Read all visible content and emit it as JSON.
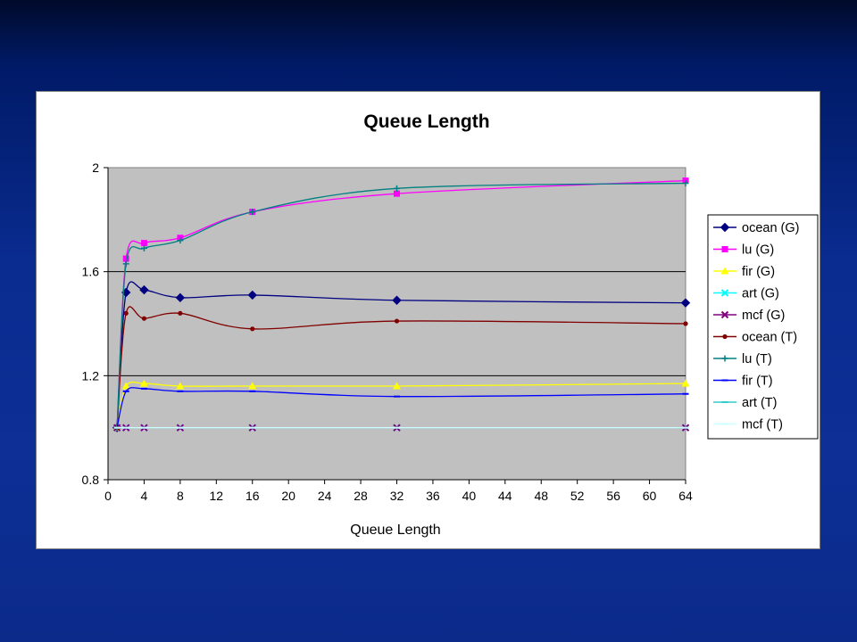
{
  "slide": {
    "background": "#0d2f96"
  },
  "chart_data": {
    "type": "line",
    "title": "Queue Length",
    "xlabel": "Queue Length",
    "ylabel": "",
    "xlim": [
      0,
      64
    ],
    "ylim": [
      0.8,
      2.0
    ],
    "xticks": [
      0,
      4,
      8,
      12,
      16,
      20,
      24,
      28,
      32,
      36,
      40,
      44,
      48,
      52,
      56,
      60,
      64
    ],
    "yticks": [
      0.8,
      1.2,
      1.6,
      2.0
    ],
    "ytick_labels": [
      "0.8",
      "1.2",
      "1.6",
      "2"
    ],
    "plot_background": "#c0c0c0",
    "grid": "horizontal",
    "legend_position": "right",
    "x": [
      1,
      2,
      4,
      8,
      16,
      32,
      64
    ],
    "series": [
      {
        "name": "ocean (G)",
        "color": "#000080",
        "marker": "diamond",
        "values": [
          1.0,
          1.52,
          1.53,
          1.5,
          1.51,
          1.49,
          1.48
        ]
      },
      {
        "name": "lu (G)",
        "color": "#ff00ff",
        "marker": "square",
        "values": [
          1.0,
          1.65,
          1.71,
          1.73,
          1.83,
          1.9,
          1.95
        ]
      },
      {
        "name": "fir (G)",
        "color": "#ffff00",
        "marker": "triangle",
        "values": [
          1.0,
          1.16,
          1.17,
          1.16,
          1.16,
          1.16,
          1.17
        ]
      },
      {
        "name": "art (G)",
        "color": "#00ffff",
        "marker": "x",
        "values": [
          1.0,
          1.0,
          1.0,
          1.0,
          1.0,
          1.0,
          1.0
        ]
      },
      {
        "name": "mcf (G)",
        "color": "#800080",
        "marker": "x",
        "values": [
          1.0,
          1.0,
          1.0,
          1.0,
          1.0,
          1.0,
          1.0
        ]
      },
      {
        "name": "ocean (T)",
        "color": "#800000",
        "marker": "circle",
        "values": [
          1.0,
          1.44,
          1.42,
          1.44,
          1.38,
          1.41,
          1.4
        ]
      },
      {
        "name": "lu (T)",
        "color": "#008080",
        "marker": "plus",
        "values": [
          1.0,
          1.63,
          1.69,
          1.72,
          1.83,
          1.92,
          1.94
        ]
      },
      {
        "name": "fir (T)",
        "color": "#0000ff",
        "marker": "dash",
        "values": [
          1.0,
          1.14,
          1.15,
          1.14,
          1.14,
          1.12,
          1.13
        ]
      },
      {
        "name": "art (T)",
        "color": "#33cccc",
        "marker": "dash",
        "values": [
          1.0,
          1.0,
          1.0,
          1.0,
          1.0,
          1.0,
          1.0
        ]
      },
      {
        "name": "mcf (T)",
        "color": "#ccffff",
        "marker": "dash",
        "values": [
          1.0,
          1.0,
          1.0,
          1.0,
          1.0,
          1.0,
          1.0
        ]
      }
    ]
  }
}
